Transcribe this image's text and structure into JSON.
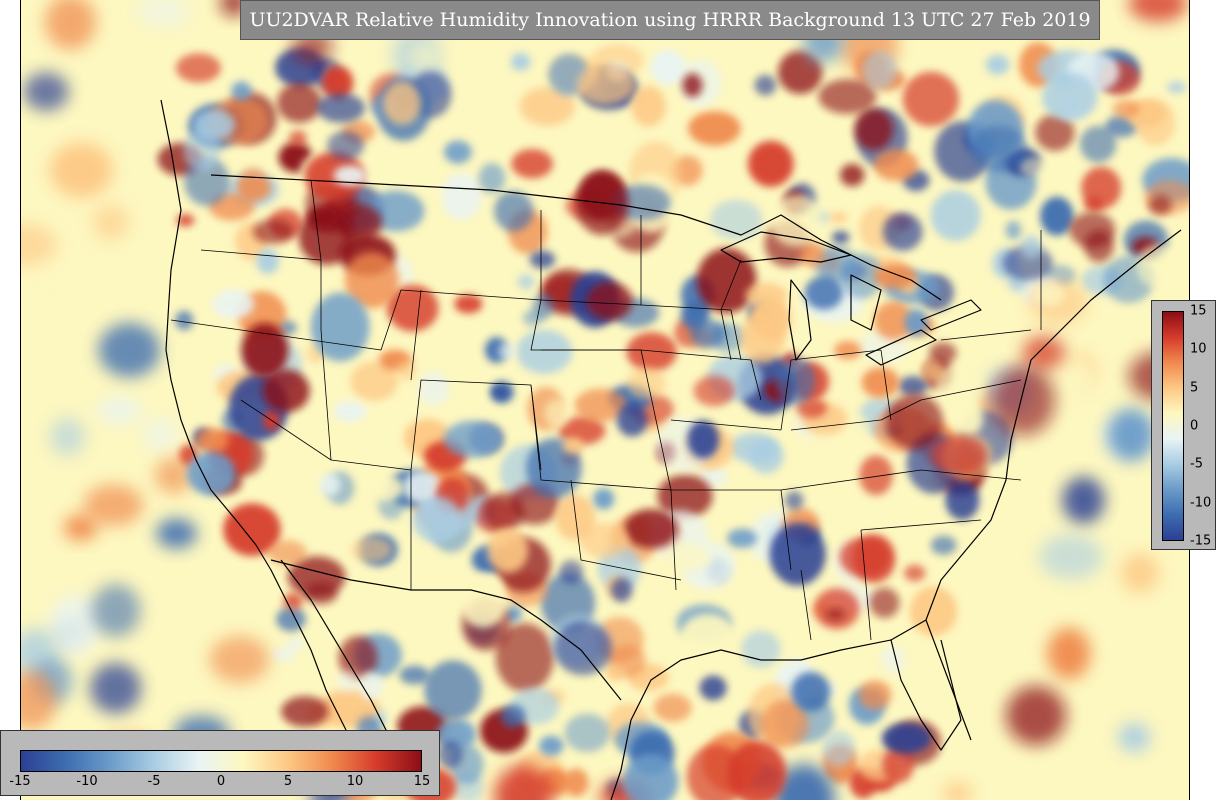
{
  "title": "UU2DVAR Relative Humidity Innovation using HRRR Background 13 UTC 27 Feb 2019",
  "colorbar": {
    "min": -15,
    "max": 15,
    "vertical_ticks": [
      "15",
      "10",
      "5",
      "0",
      "-5",
      "-10",
      "-15"
    ],
    "vertical_values": [
      15,
      10,
      5,
      0,
      -5,
      -10,
      -15
    ],
    "horizontal_ticks": [
      "-15",
      "-10",
      "-5",
      "0",
      "5",
      "10",
      "15"
    ],
    "horizontal_values": [
      -15,
      -10,
      -5,
      0,
      5,
      10,
      15
    ],
    "colors": [
      "#2c3f93",
      "#3d6db0",
      "#6b9bc9",
      "#a9cde3",
      "#e9f4f4",
      "#fdf7c0",
      "#fdc884",
      "#f08a4e",
      "#d53b2c",
      "#8b0e16"
    ]
  },
  "background_color": "#fdf7c0"
}
